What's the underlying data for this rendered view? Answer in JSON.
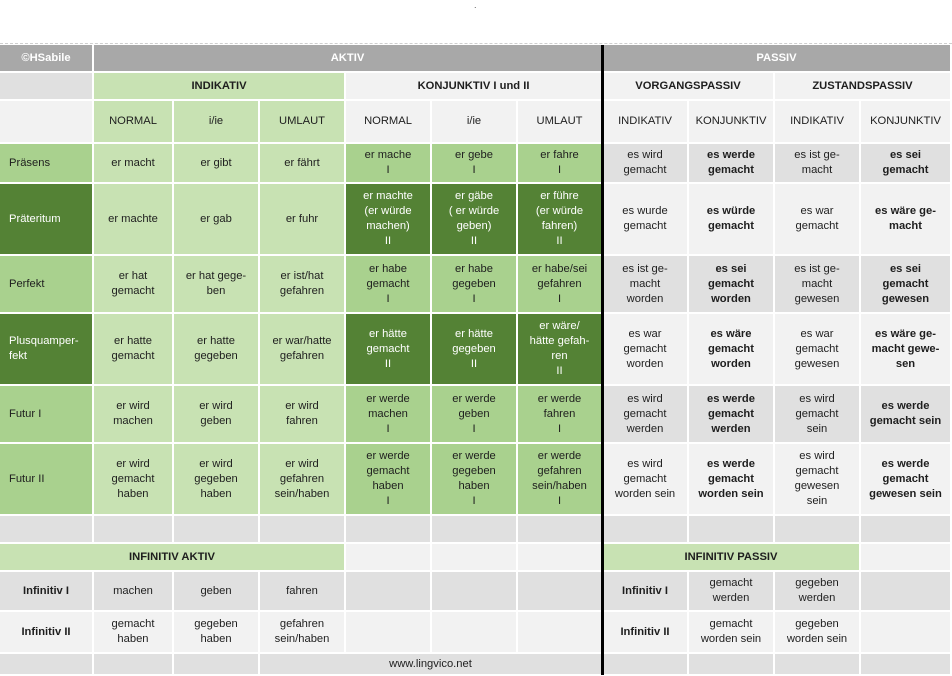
{
  "header": {
    "copyright": "©HSabile",
    "aktiv": "AKTIV",
    "passiv": "PASSIV",
    "indikativ": "INDIKATIV",
    "konjunktiv": "KONJUNKTIV I und II",
    "vorgangspassiv": "VORGANGSPASSIV",
    "zustandspassiv": "ZUSTANDSPASSIV"
  },
  "subheaders": [
    "NORMAL",
    "i/ie",
    "UMLAUT",
    "NORMAL",
    "i/ie",
    "UMLAUT",
    "INDIKATIV",
    "KONJUNKTIV",
    "INDIKATIV",
    "KONJUNKTIV"
  ],
  "rows": [
    {
      "label": "Präsens",
      "cells": [
        "er macht",
        "er gibt",
        "er fährt",
        "er mache\nI",
        "er gebe\nI",
        "er fahre\nI",
        "es wird\ngemacht",
        "es werde\ngemacht",
        "es ist ge-\nmacht",
        "es sei\ngemacht"
      ]
    },
    {
      "label": "Präteritum",
      "cells": [
        "er machte",
        "er gab",
        "er fuhr",
        "er machte\n(er würde\nmachen)\nII",
        "er gäbe\n( er würde\ngeben)\nII",
        "er führe\n(er würde\nfahren)\nII",
        "es wurde\ngemacht",
        "es würde\ngemacht",
        "es war\ngemacht",
        "es wäre ge-\nmacht"
      ]
    },
    {
      "label": "Perfekt",
      "cells": [
        "er hat\ngemacht",
        "er hat gege-\nben",
        "er ist/hat\ngefahren",
        "er habe\ngemacht\nI",
        "er habe\ngegeben\nI",
        "er habe/sei\ngefahren\nI",
        "es  ist ge-\nmacht\nworden",
        "es sei\ngemacht\nworden",
        "es  ist ge-\nmacht\ngewesen",
        "es sei\ngemacht\ngewesen"
      ]
    },
    {
      "label": "Plusquamper-\nfekt",
      "cells": [
        "er hatte\ngemacht",
        "er hatte\ngegeben",
        "er war/hatte\ngefahren",
        "er hätte\ngemacht\nII",
        "er hätte\ngegeben\nII",
        "er wäre/\nhätte gefah-\nren\nII",
        "es war\ngemacht\nworden",
        "es wäre\ngemacht\nworden",
        "es war\ngemacht\ngewesen",
        "es wäre ge-\nmacht gewe-\nsen"
      ]
    },
    {
      "label": "Futur I",
      "cells": [
        "er wird\nmachen",
        "er wird\ngeben",
        "er wird\nfahren",
        "er werde\nmachen\nI",
        "er werde\ngeben\nI",
        "er werde\nfahren\nI",
        "es wird\ngemacht\nwerden",
        "es werde\ngemacht\nwerden",
        "es wird\ngemacht\nsein",
        "es werde\ngemacht sein"
      ]
    },
    {
      "label": "Futur II",
      "cells": [
        "er wird\ngemacht\nhaben",
        "er wird\ngegeben\nhaben",
        "er wird\ngefahren\nsein/haben",
        "er werde\ngemacht\nhaben\nI",
        "er werde\ngegeben\nhaben\nI",
        "er werde\ngefahren\nsein/haben\nI",
        "es wird\ngemacht\nworden sein",
        "es werde\ngemacht\nworden sein",
        "es wird\ngemacht\ngewesen\nsein",
        "es werde\ngemacht\ngewesen sein"
      ]
    }
  ],
  "infinitiv": {
    "aktiv_title": "INFINITIV AKTIV",
    "passiv_title": "INFINITIV PASSIV",
    "rows": [
      {
        "label": "Infinitiv I",
        "aktiv": [
          "machen",
          "geben",
          "fahren"
        ],
        "passiv": [
          "gemacht\nwerden",
          "gegeben\nwerden"
        ]
      },
      {
        "label": "Infinitiv II",
        "aktiv": [
          "gemacht\nhaben",
          "gegeben\nhaben",
          "gefahren\nsein/haben"
        ],
        "passiv": [
          "gemacht\nworden sein",
          "gegeben\nworden sein"
        ]
      }
    ]
  },
  "footer": {
    "url": "www.lingvico.net"
  }
}
